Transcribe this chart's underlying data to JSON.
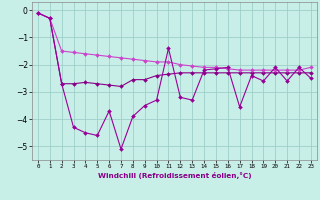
{
  "xlabel": "Windchill (Refroidissement éolien,°C)",
  "x": [
    0,
    1,
    2,
    3,
    4,
    5,
    6,
    7,
    8,
    9,
    10,
    11,
    12,
    13,
    14,
    15,
    16,
    17,
    18,
    19,
    20,
    21,
    22,
    23
  ],
  "line1": [
    -0.1,
    -0.3,
    -2.7,
    -4.3,
    -4.5,
    -4.6,
    -3.7,
    -5.1,
    -3.9,
    -3.5,
    -3.3,
    -1.4,
    -3.2,
    -3.3,
    -2.2,
    -2.15,
    -2.1,
    -3.55,
    -2.4,
    -2.6,
    -2.1,
    -2.6,
    -2.1,
    -2.5
  ],
  "line2": [
    -0.1,
    -0.3,
    -1.5,
    -1.55,
    -1.6,
    -1.65,
    -1.7,
    -1.75,
    -1.8,
    -1.85,
    -1.9,
    -1.9,
    -2.0,
    -2.05,
    -2.1,
    -2.1,
    -2.15,
    -2.2,
    -2.2,
    -2.2,
    -2.2,
    -2.2,
    -2.2,
    -2.1
  ],
  "line3": [
    -0.1,
    -0.3,
    -2.7,
    -2.7,
    -2.65,
    -2.7,
    -2.75,
    -2.8,
    -2.55,
    -2.55,
    -2.4,
    -2.35,
    -2.3,
    -2.3,
    -2.3,
    -2.3,
    -2.3,
    -2.3,
    -2.3,
    -2.3,
    -2.3,
    -2.3,
    -2.3,
    -2.3
  ],
  "color_jagged": "#990099",
  "color_smooth": "#cc44cc",
  "color_mid": "#880088",
  "bg_color": "#c8eee8",
  "grid_color": "#9dcfc8",
  "ylim": [
    -5.5,
    0.3
  ],
  "yticks": [
    0,
    -1,
    -2,
    -3,
    -4,
    -5
  ],
  "markersize": 2.0,
  "linewidth": 0.8
}
